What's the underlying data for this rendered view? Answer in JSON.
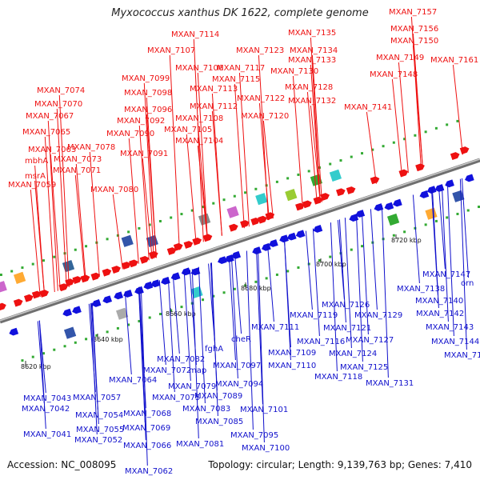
{
  "title": "Myxococcus xanthus DK 1622, complete genome",
  "accession": "Accession: NC_008095",
  "topology": "Topology: circular; Length: 9,139,763 bp; Genes: 7,410",
  "colors": {
    "forward": "#ee1111",
    "reverse": "#1111dd",
    "backbone": "#888888"
  },
  "scale_labels": [
    "8620 kbp",
    "8640 kbp",
    "8660 kbp",
    "8680 kbp",
    "8700 kbp",
    "8720 kbp"
  ],
  "top_labels": [
    "MXAN_7059",
    "msrA",
    "mbhA",
    "MXAN_7063",
    "MXAN_7065",
    "MXAN_7067",
    "MXAN_7070",
    "MXAN_7074",
    "MXAN_7071",
    "MXAN_7073",
    "MXAN_7078",
    "MXAN_7080",
    "MXAN_7091",
    "MXAN_7090",
    "MXAN_7092",
    "MXAN_7096",
    "MXAN_7098",
    "MXAN_7099",
    "MXAN_7107",
    "MXAN_7114",
    "MXAN_7106",
    "MXAN_7104",
    "MXAN_7105",
    "MXAN_7108",
    "MXAN_7112",
    "MXAN_7113",
    "MXAN_7115",
    "MXAN_7117",
    "MXAN_7120",
    "MXAN_7122",
    "MXAN_7123",
    "MXAN_7132",
    "MXAN_7128",
    "MXAN_7130",
    "MXAN_7133",
    "MXAN_7134",
    "MXAN_7135",
    "MXAN_7141",
    "MXAN_7148",
    "MXAN_7149",
    "MXAN_7150",
    "MXAN_7156",
    "MXAN_7157",
    "MXAN_7161"
  ],
  "bottom_labels": [
    "MXAN_7041",
    "MXAN_7042",
    "MXAN_7043",
    "MXAN_7052",
    "MXAN_7055",
    "MXAN_7054",
    "MXAN_7057",
    "MXAN_7062",
    "MXAN_7066",
    "MXAN_7069",
    "MXAN_7068",
    "MXAN_7064",
    "MXAN_7072",
    "MXAN_7075",
    "MXAN_7079",
    "MXAN_7082",
    "map",
    "fghA",
    "MXAN_7081",
    "MXAN_7085",
    "MXAN_7083",
    "MXAN_7089",
    "MXAN_7097",
    "MXAN_7094",
    "cheR",
    "MXAN_7095",
    "MXAN_7100",
    "MXAN_7101",
    "MXAN_7109",
    "MXAN_7111",
    "MXAN_7110",
    "MXAN_7116",
    "MXAN_7119",
    "MXAN_7121",
    "MXAN_7118",
    "MXAN_7124",
    "MXAN_7126",
    "MXAN_7127",
    "MXAN_7125",
    "MXAN_7129",
    "MXAN_7131",
    "MXAN_7138",
    "MXAN_7140",
    "MXAN_7142",
    "MXAN_7143",
    "MXAN_7144",
    "MXAN_7145",
    "MXAN_7147",
    "orn"
  ]
}
